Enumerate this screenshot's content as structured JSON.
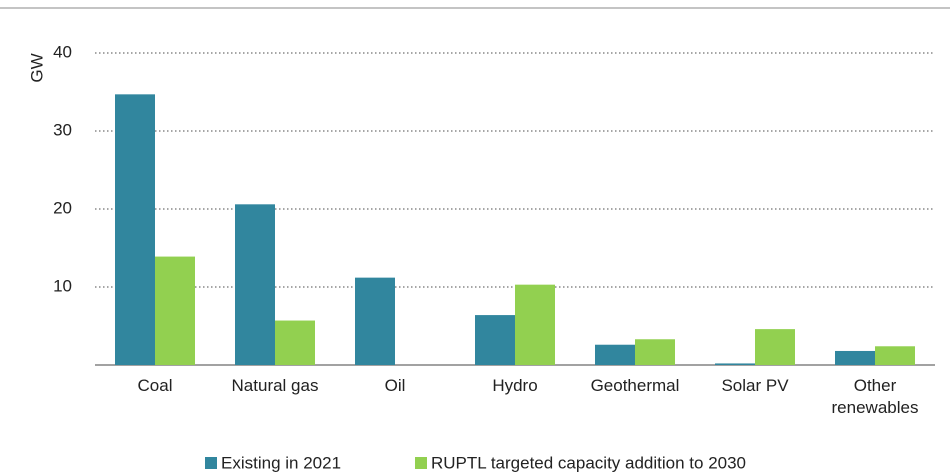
{
  "chart_data": {
    "type": "bar",
    "y_label": "GW",
    "categories": [
      "Coal",
      "Natural gas",
      "Oil",
      "Hydro",
      "Geothermal",
      "Solar PV",
      "Other renewables"
    ],
    "series": [
      {
        "name": "Existing in 2021",
        "color": "#31869e",
        "values": [
          34.7,
          20.6,
          11.2,
          6.4,
          2.6,
          0.2,
          1.8
        ]
      },
      {
        "name": "RUPTL targeted capacity addition to 2030",
        "color": "#92d050",
        "values": [
          13.9,
          5.7,
          0,
          10.3,
          3.3,
          4.6,
          2.4
        ]
      }
    ],
    "ylim": [
      0,
      40
    ],
    "yticks": [
      10,
      20,
      30,
      40
    ],
    "grid": true
  }
}
